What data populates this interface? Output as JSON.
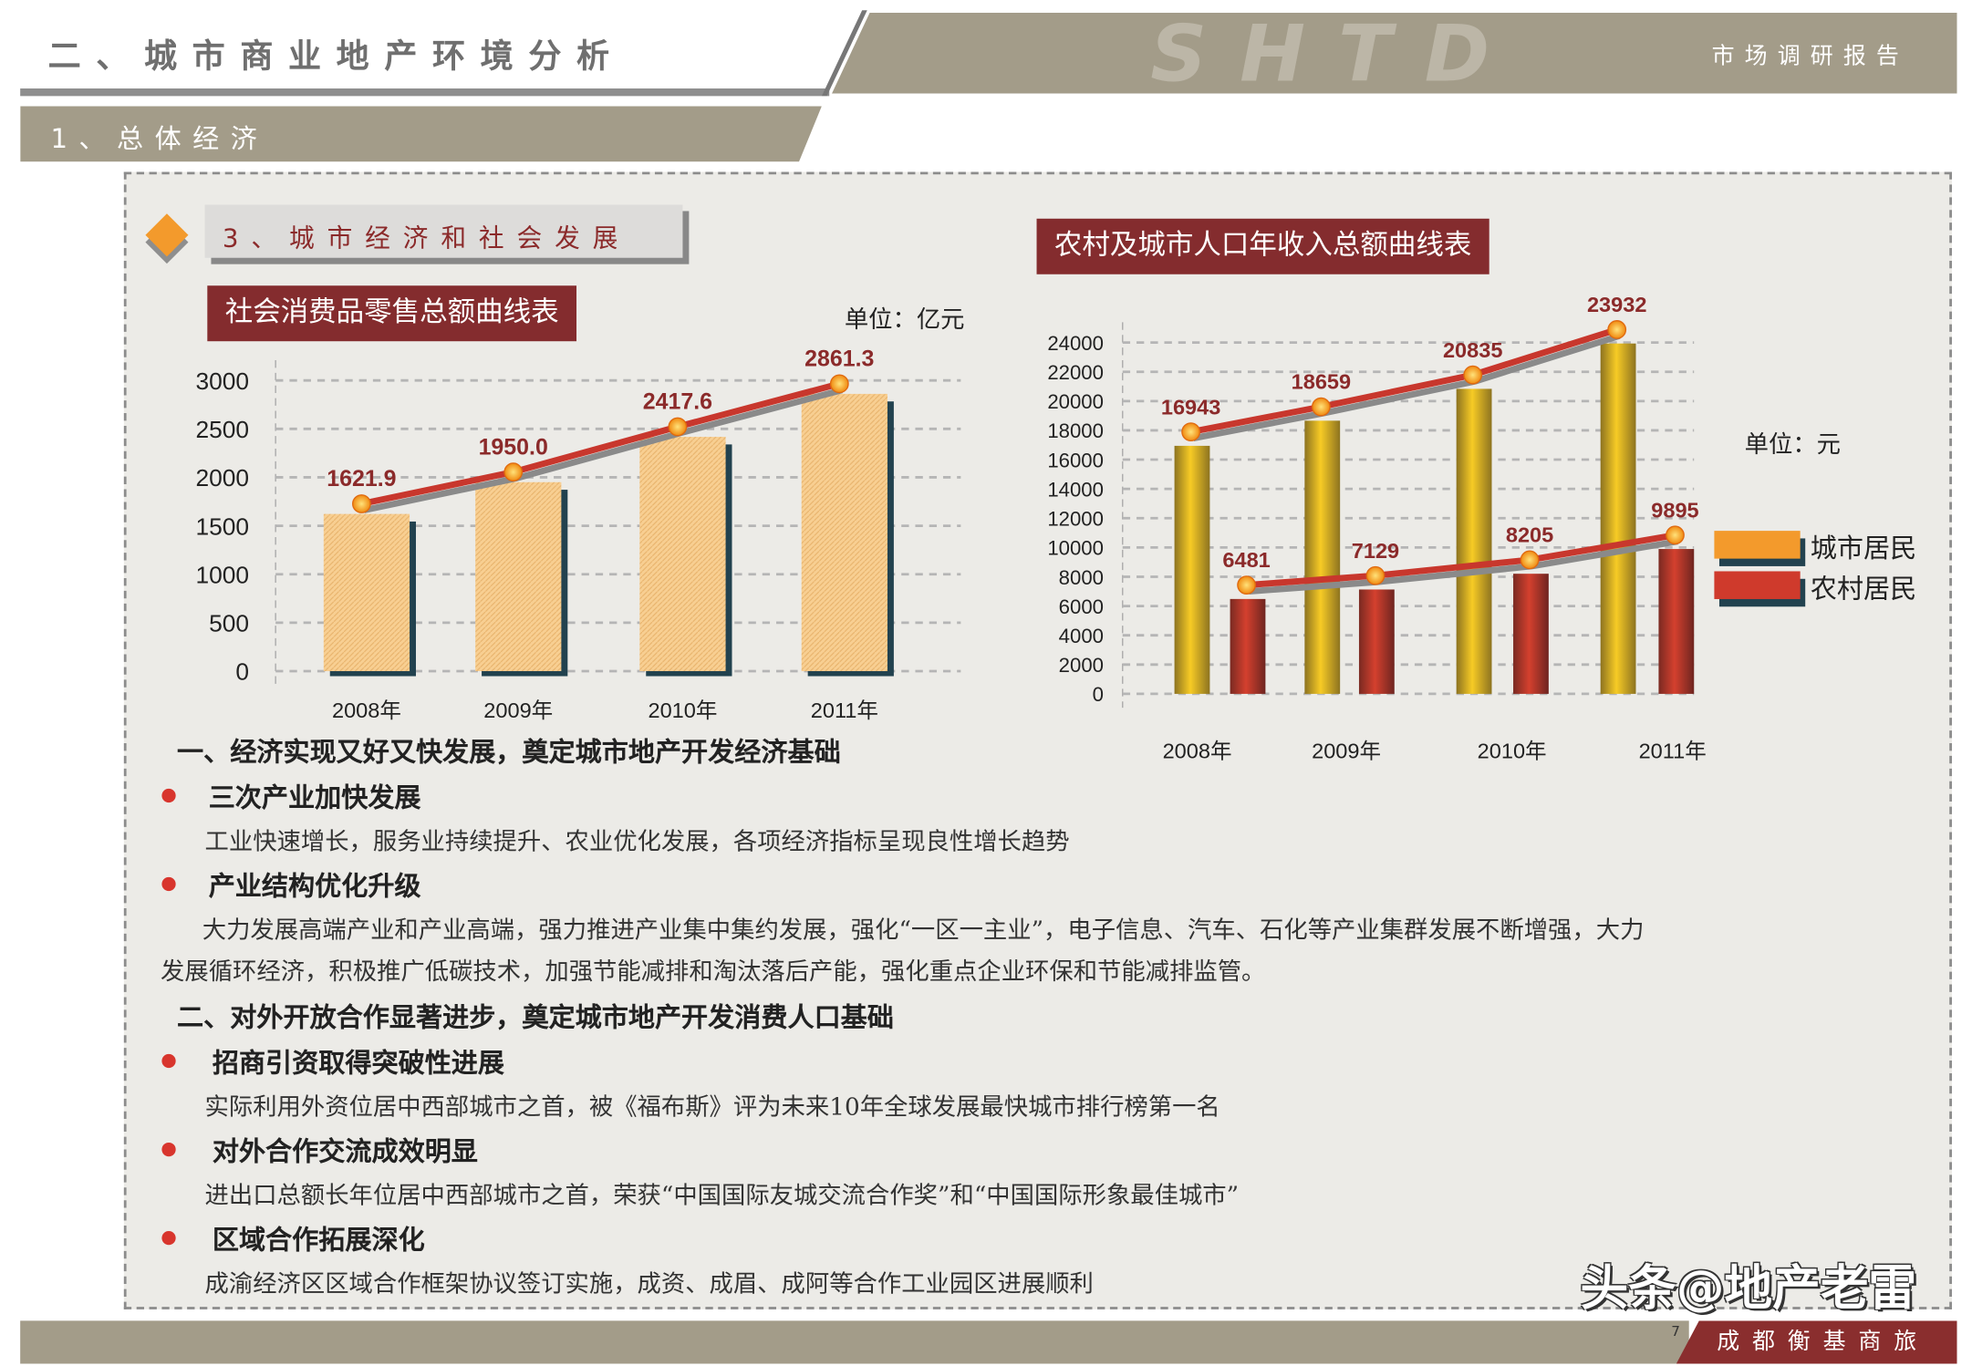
{
  "header": {
    "title": "二、城市商业地产环境分析",
    "logo": "SHTD",
    "report_label": "市场调研报告"
  },
  "subheader": {
    "title": "1、总体经济"
  },
  "section": {
    "title": "3、城市经济和社会发展"
  },
  "chart_data": [
    {
      "type": "bar",
      "title": "社会消费品零售总额曲线表",
      "unit": "单位：亿元",
      "categories": [
        "2008年",
        "2009年",
        "2010年",
        "2011年"
      ],
      "values": [
        1621.9,
        1950.0,
        2417.6,
        2861.3
      ],
      "value_labels": [
        "1621.9",
        "1950.0",
        "2417.6",
        "2861.3"
      ],
      "yticks": [
        0,
        500,
        1000,
        1500,
        2000,
        2500,
        3000
      ],
      "ylim": [
        0,
        3000
      ],
      "grid": true,
      "overlay_line": true,
      "colors": {
        "bar": "#f5c98a",
        "line": "#c8372d",
        "marker": "#f7a21b"
      }
    },
    {
      "type": "bar",
      "title": "农村及城市人口年收入总额曲线表",
      "unit": "单位：元",
      "categories": [
        "2008年",
        "2009年",
        "2010年",
        "2011年"
      ],
      "series": [
        {
          "name": "城市居民",
          "values": [
            16943,
            18659,
            20835,
            23932
          ],
          "color": "#f0b81e",
          "legend_color": "#f39a2c"
        },
        {
          "name": "农村居民",
          "values": [
            6481,
            7129,
            8205,
            9895
          ],
          "color": "#c0392b",
          "legend_color": "#cf3a2c"
        }
      ],
      "yticks": [
        0,
        2000,
        4000,
        6000,
        8000,
        10000,
        12000,
        14000,
        16000,
        18000,
        20000,
        22000,
        24000
      ],
      "ylim": [
        0,
        24000
      ],
      "grid": true,
      "legend": "right"
    }
  ],
  "content": {
    "heading1": "一、经济实现又好又快发展，奠定城市地产开发经济基础",
    "b1_title": "三次产业加快发展",
    "b1_text": "工业快速增长，服务业持续提升、农业优化发展，各项经济指标呈现良性增长趋势",
    "b2_title": "产业结构优化升级",
    "b2_text1": "大力发展高端产业和产业高端，强力推进产业集中集约发展，强化“一区一主业”，电子信息、汽车、石化等产业集群发展不断增强，大力",
    "b2_text2": "发展循环经济，积极推广低碳技术，加强节能减排和淘汰落后产能，强化重点企业环保和节能减排监管。",
    "heading2": "二、对外开放合作显著进步，奠定城市地产开发消费人口基础",
    "b3_title": "招商引资取得突破性进展",
    "b3_text": "实际利用外资位居中西部城市之首，被《福布斯》评为未来10年全球发展最快城市排行榜第一名",
    "b4_title": "对外合作交流成效明显",
    "b4_text": "进出口总额长年位居中西部城市之首，荣获“中国国际友城交流合作奖”和“中国国际形象最佳城市”",
    "b5_title": "区域合作拓展深化",
    "b5_text": "成渝经济区区域合作框架协议签订实施，成资、成眉、成阿等合作工业园区进展顺利"
  },
  "footer": {
    "company": "成都衡基商旅",
    "page": "7",
    "watermark": "头条@地产老雷"
  }
}
